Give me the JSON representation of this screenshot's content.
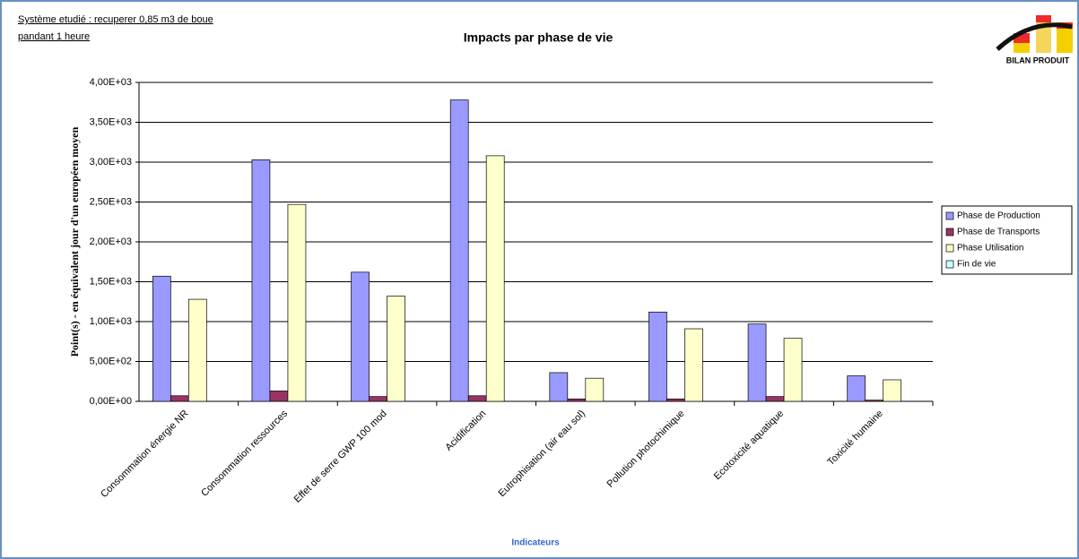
{
  "chart_data": {
    "type": "bar",
    "title": "Impacts par phase de vie",
    "annotations": [
      "Système etudié : recuperer 0,85 m3 de boue ",
      "pandant 1 heure"
    ],
    "logo_text": "BILAN PRODUIT",
    "x_label": "Indicateurs",
    "y_label": "Point(s)  - en équivalent jour d'un européen moyen",
    "categories": [
      "Consommation énergie NR",
      "Consommation ressources",
      "Effet de serre GWP 100 mod",
      "Acidification",
      "Eutrophisation (air eau sol)",
      "Pollution photochimique",
      "Ecotoxicité aquatique",
      "Toxicité humaine"
    ],
    "series": [
      {
        "name": "Phase de Production",
        "color": "#9999ff",
        "values": [
          1570,
          3030,
          1620,
          3780,
          360,
          1120,
          970,
          320
        ]
      },
      {
        "name": "Phase de Transports",
        "color": "#993366",
        "values": [
          70,
          130,
          60,
          70,
          30,
          30,
          60,
          15
        ]
      },
      {
        "name": "Phase Utilisation",
        "color": "#ffffcc",
        "values": [
          1280,
          2470,
          1320,
          3080,
          290,
          910,
          790,
          270
        ]
      },
      {
        "name": "Fin de vie",
        "color": "#ccffff",
        "values": [
          0,
          0,
          0,
          0,
          0,
          0,
          0,
          0
        ]
      }
    ],
    "ylim": [
      0,
      4000
    ],
    "yticks": [
      {
        "value": 0,
        "label": "0,00E+00"
      },
      {
        "value": 500,
        "label": "5,00E+02"
      },
      {
        "value": 1000,
        "label": "1,00E+03"
      },
      {
        "value": 1500,
        "label": "1,50E+03"
      },
      {
        "value": 2000,
        "label": "2,00E+03"
      },
      {
        "value": 2500,
        "label": "2,50E+03"
      },
      {
        "value": 3000,
        "label": "3,00E+03"
      },
      {
        "value": 3500,
        "label": "3,50E+03"
      },
      {
        "value": 4000,
        "label": "4,00E+03"
      }
    ],
    "grid": true,
    "legend": "right"
  }
}
